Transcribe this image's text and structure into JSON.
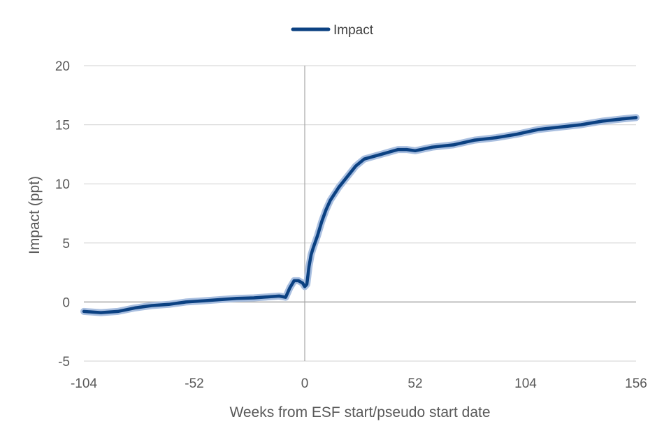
{
  "chart_data": {
    "type": "line",
    "title": "",
    "xlabel": "Weeks from ESF start/pseudo start date",
    "ylabel": "Impact (ppt)",
    "xlim": [
      -104,
      156
    ],
    "ylim": [
      -5,
      20
    ],
    "x_ticks": [
      -104,
      -52,
      0,
      52,
      104,
      156
    ],
    "y_ticks": [
      -5,
      0,
      5,
      10,
      15,
      20
    ],
    "x_tick_labels": [
      "-104",
      "-52",
      "0",
      "52",
      "104",
      "156"
    ],
    "y_tick_labels": [
      "-5",
      "0",
      "5",
      "10",
      "15",
      "20"
    ],
    "grid": true,
    "legend": {
      "position": "top-center",
      "entries": [
        "Impact"
      ]
    },
    "colors": {
      "line": "#0b4182",
      "confidence_band": "#a9bfe0",
      "grid": "#d9d9d9",
      "zero_line": "#a6a6a6"
    },
    "series": [
      {
        "name": "Impact",
        "x": [
          -104,
          -96,
          -88,
          -80,
          -72,
          -64,
          -56,
          -48,
          -40,
          -32,
          -24,
          -16,
          -12,
          -9,
          -7,
          -5,
          -3,
          -1,
          0,
          1,
          2,
          3,
          4,
          6,
          8,
          10,
          12,
          16,
          20,
          24,
          28,
          32,
          36,
          40,
          44,
          48,
          52,
          60,
          70,
          80,
          90,
          100,
          110,
          120,
          130,
          140,
          150,
          156
        ],
        "y": [
          -0.8,
          -0.9,
          -0.8,
          -0.5,
          -0.3,
          -0.2,
          0.0,
          0.1,
          0.2,
          0.3,
          0.35,
          0.45,
          0.5,
          0.4,
          1.2,
          1.8,
          1.8,
          1.6,
          1.3,
          1.5,
          3.0,
          4.0,
          4.6,
          5.6,
          6.8,
          7.8,
          8.6,
          9.7,
          10.6,
          11.5,
          12.1,
          12.3,
          12.5,
          12.7,
          12.9,
          12.9,
          12.8,
          13.1,
          13.3,
          13.7,
          13.9,
          14.2,
          14.6,
          14.8,
          15.0,
          15.3,
          15.5,
          15.6
        ]
      }
    ]
  }
}
